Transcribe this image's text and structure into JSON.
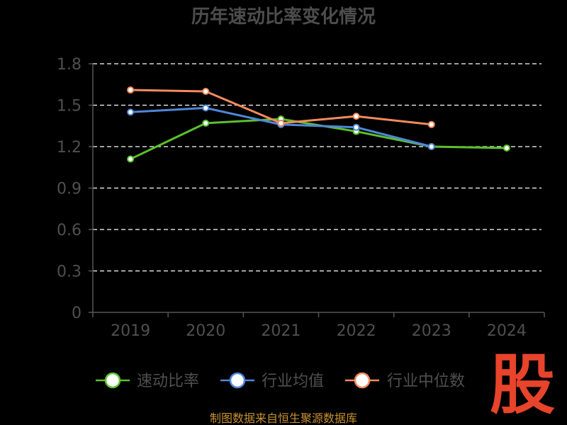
{
  "watermark": "股",
  "source_text": "制图数据来自恒生聚源数据库",
  "colors": {
    "background": "#000000",
    "axis": "#555555",
    "grid": "#ffffff",
    "text": "#4f4f4f",
    "source": "#c8912f",
    "watermark": "#e8432b"
  },
  "chart_data": {
    "type": "line",
    "title": "历年速动比率变化情况",
    "categories": [
      "2019",
      "2020",
      "2021",
      "2022",
      "2023",
      "2024"
    ],
    "yticks": [
      "0",
      "0.3",
      "0.6",
      "0.9",
      "1.2",
      "1.5",
      "1.8"
    ],
    "ylim": [
      0,
      1.8
    ],
    "grid": true,
    "legend_position": "bottom",
    "series": [
      {
        "name": "速动比率",
        "color": "#5bbf2e",
        "values": [
          1.11,
          1.37,
          1.4,
          1.31,
          1.2,
          1.19
        ]
      },
      {
        "name": "行业均值",
        "color": "#4f87d8",
        "values": [
          1.45,
          1.48,
          1.36,
          1.34,
          1.2,
          null
        ]
      },
      {
        "name": "行业中位数",
        "color": "#f28b5e",
        "values": [
          1.61,
          1.6,
          1.37,
          1.42,
          1.36,
          null
        ]
      }
    ]
  }
}
